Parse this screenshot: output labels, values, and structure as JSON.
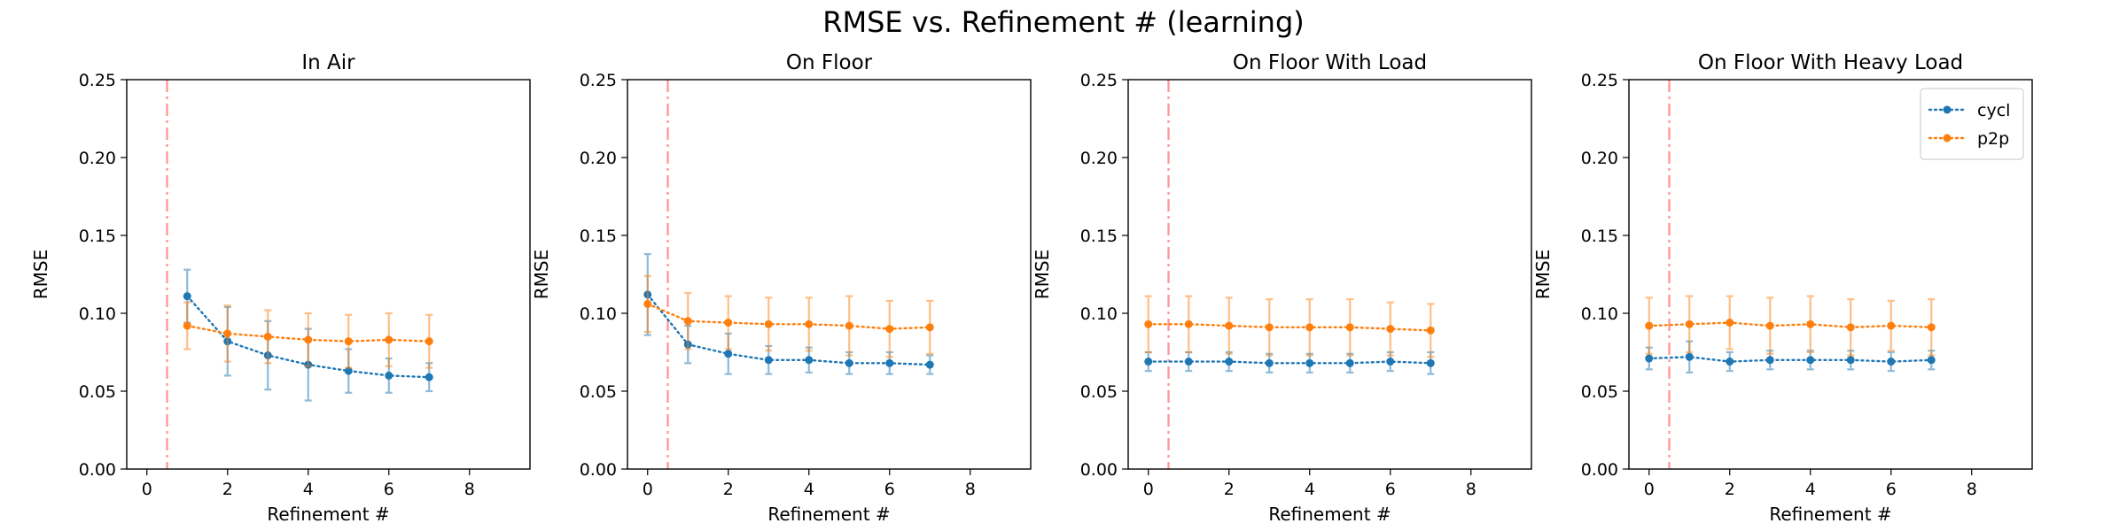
{
  "figure": {
    "title": "RMSE vs. Refinement # (learning)"
  },
  "colors": {
    "cycl": "#1f77b4",
    "p2p": "#ff7f0e",
    "marker_line": "#ff9999"
  },
  "chart_data": [
    {
      "type": "line",
      "title": "In Air",
      "xlabel": "Refinement #",
      "ylabel": "RMSE",
      "xlim": [
        -0.5,
        9.5
      ],
      "ylim": [
        0,
        0.25
      ],
      "xticks": [
        0,
        2,
        4,
        6,
        8
      ],
      "yticks": [
        0.0,
        0.05,
        0.1,
        0.15,
        0.2,
        0.25
      ],
      "vline_x": 0.5,
      "legend": null,
      "x": [
        1,
        2,
        3,
        4,
        5,
        6,
        7
      ],
      "series": [
        {
          "name": "cycl",
          "values": [
            0.111,
            0.082,
            0.073,
            0.067,
            0.063,
            0.06,
            0.059
          ],
          "errors": [
            0.017,
            0.022,
            0.022,
            0.023,
            0.014,
            0.011,
            0.009
          ]
        },
        {
          "name": "p2p",
          "values": [
            0.092,
            0.087,
            0.085,
            0.083,
            0.082,
            0.083,
            0.082
          ],
          "errors": [
            0.015,
            0.018,
            0.017,
            0.017,
            0.017,
            0.017,
            0.017
          ]
        }
      ]
    },
    {
      "type": "line",
      "title": "On Floor",
      "xlabel": "Refinement #",
      "ylabel": "RMSE",
      "xlim": [
        -0.5,
        9.5
      ],
      "ylim": [
        0,
        0.25
      ],
      "xticks": [
        0,
        2,
        4,
        6,
        8
      ],
      "yticks": [
        0.0,
        0.05,
        0.1,
        0.15,
        0.2,
        0.25
      ],
      "vline_x": 0.5,
      "legend": null,
      "x": [
        0,
        1,
        2,
        3,
        4,
        5,
        6,
        7
      ],
      "series": [
        {
          "name": "cycl",
          "values": [
            0.112,
            0.08,
            0.074,
            0.07,
            0.07,
            0.068,
            0.068,
            0.067
          ],
          "errors": [
            0.026,
            0.012,
            0.013,
            0.009,
            0.008,
            0.007,
            0.007,
            0.006
          ]
        },
        {
          "name": "p2p",
          "values": [
            0.106,
            0.095,
            0.094,
            0.093,
            0.093,
            0.092,
            0.09,
            0.091
          ],
          "errors": [
            0.018,
            0.018,
            0.017,
            0.017,
            0.017,
            0.019,
            0.018,
            0.017
          ]
        }
      ]
    },
    {
      "type": "line",
      "title": "On Floor With Load",
      "xlabel": "Refinement #",
      "ylabel": "RMSE",
      "xlim": [
        -0.5,
        9.5
      ],
      "ylim": [
        0,
        0.25
      ],
      "xticks": [
        0,
        2,
        4,
        6,
        8
      ],
      "yticks": [
        0.0,
        0.05,
        0.1,
        0.15,
        0.2,
        0.25
      ],
      "vline_x": 0.5,
      "legend": null,
      "x": [
        0,
        1,
        2,
        3,
        4,
        5,
        6,
        7
      ],
      "series": [
        {
          "name": "cycl",
          "values": [
            0.069,
            0.069,
            0.069,
            0.068,
            0.068,
            0.068,
            0.069,
            0.068
          ],
          "errors": [
            0.006,
            0.006,
            0.006,
            0.006,
            0.006,
            0.006,
            0.006,
            0.007
          ]
        },
        {
          "name": "p2p",
          "values": [
            0.093,
            0.093,
            0.092,
            0.091,
            0.091,
            0.091,
            0.09,
            0.089
          ],
          "errors": [
            0.018,
            0.018,
            0.018,
            0.018,
            0.018,
            0.018,
            0.017,
            0.017
          ]
        }
      ]
    },
    {
      "type": "line",
      "title": "On Floor With Heavy Load",
      "xlabel": "Refinement #",
      "ylabel": "RMSE",
      "xlim": [
        -0.5,
        9.5
      ],
      "ylim": [
        0,
        0.25
      ],
      "xticks": [
        0,
        2,
        4,
        6,
        8
      ],
      "yticks": [
        0.0,
        0.05,
        0.1,
        0.15,
        0.2,
        0.25
      ],
      "vline_x": 0.5,
      "legend": "upper right",
      "x": [
        0,
        1,
        2,
        3,
        4,
        5,
        6,
        7
      ],
      "series": [
        {
          "name": "cycl",
          "values": [
            0.071,
            0.072,
            0.069,
            0.07,
            0.07,
            0.07,
            0.069,
            0.07
          ],
          "errors": [
            0.007,
            0.01,
            0.006,
            0.006,
            0.006,
            0.006,
            0.006,
            0.006
          ]
        },
        {
          "name": "p2p",
          "values": [
            0.092,
            0.093,
            0.094,
            0.092,
            0.093,
            0.091,
            0.092,
            0.091
          ],
          "errors": [
            0.018,
            0.018,
            0.017,
            0.018,
            0.018,
            0.018,
            0.016,
            0.018
          ]
        }
      ]
    }
  ]
}
